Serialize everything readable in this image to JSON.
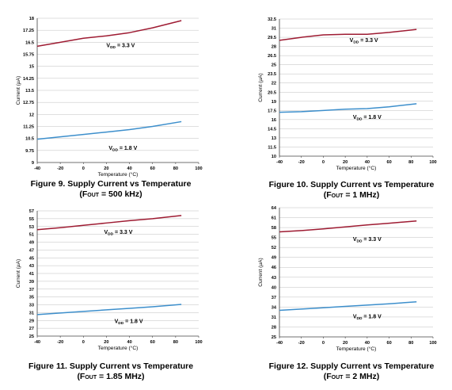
{
  "colors": {
    "vdd_3v3": "#9e1b32",
    "vdd_1v8": "#3d8fcc",
    "grid": "#bfbfbf",
    "axis": "#404040"
  },
  "captions": [
    {
      "title": "Figure 9. Supply Current vs Temperature",
      "fout_prefix": "(F",
      "fout_sub": "OUT",
      "fout_suffix": " = 500 kHz)"
    },
    {
      "title": "Figure 10. Supply Current vs Temperature",
      "fout_prefix": "(F",
      "fout_sub": "OUT",
      "fout_suffix": " = 1 MHz)"
    },
    {
      "title": "Figure 11. Supply Current vs Temperature",
      "fout_prefix": "(F",
      "fout_sub": "OUT",
      "fout_suffix": " = 1.85 MHz)"
    },
    {
      "title": "Figure 12. Supply Current vs Temperature",
      "fout_prefix": "(F",
      "fout_sub": "OUT",
      "fout_suffix": " = 2 MHz)"
    }
  ],
  "chart_data": [
    {
      "type": "line",
      "title": "Figure 9. Supply Current vs Temperature (FOUT = 500 kHz)",
      "xlabel": "Temperature (°C)",
      "ylabel": "Current (µA)",
      "xlim": [
        -40,
        100
      ],
      "ylim": [
        9,
        18
      ],
      "xticks": [
        "-40",
        "-20",
        "0",
        "20",
        "40",
        "60",
        "80",
        "100"
      ],
      "yticks": [
        "9",
        "9.75",
        "10.5",
        "11.25",
        "12",
        "12.75",
        "13.5",
        "14.25",
        "15",
        "15.75",
        "16.5",
        "17.25",
        "18"
      ],
      "grid": "horizontal",
      "series": [
        {
          "name": "VDD = 3.3 V",
          "label_main": "V",
          "label_sub": "DD",
          "label_rest": " = 3.3 V",
          "label_at": [
            20,
            16.2
          ],
          "x": [
            -40,
            -20,
            0,
            20,
            40,
            60,
            85
          ],
          "y": [
            16.25,
            16.5,
            16.75,
            16.9,
            17.1,
            17.4,
            17.85
          ]
        },
        {
          "name": "VDD = 1.8 V",
          "label_main": "V",
          "label_sub": "DD",
          "label_rest": " = 1.8 V",
          "label_at": [
            22,
            9.8
          ],
          "x": [
            -40,
            -20,
            0,
            20,
            40,
            60,
            85
          ],
          "y": [
            10.45,
            10.6,
            10.75,
            10.9,
            11.05,
            11.25,
            11.55
          ]
        }
      ]
    },
    {
      "type": "line",
      "title": "Figure 10. Supply Current vs Temperature (FOUT = 1 MHz)",
      "xlabel": "Temperature (°C)",
      "ylabel": "Current (µA)",
      "xlim": [
        -40,
        100
      ],
      "ylim": [
        10,
        32.5
      ],
      "xticks": [
        "-40",
        "-20",
        "0",
        "20",
        "40",
        "60",
        "80",
        "100"
      ],
      "yticks": [
        "10",
        "11.5",
        "13",
        "14.5",
        "16",
        "17.5",
        "19",
        "20.5",
        "22",
        "23.5",
        "25",
        "26.5",
        "28",
        "29.5",
        "31",
        "32.5"
      ],
      "grid": "horizontal",
      "series": [
        {
          "name": "VDD = 3.3 V",
          "label_main": "V",
          "label_sub": "DD",
          "label_rest": " = 3.3 V",
          "label_at": [
            24,
            28.7
          ],
          "x": [
            -40,
            -20,
            0,
            20,
            40,
            60,
            85
          ],
          "y": [
            29.0,
            29.5,
            29.9,
            30.0,
            30.0,
            30.3,
            30.8
          ]
        },
        {
          "name": "VDD = 1.8 V",
          "label_main": "V",
          "label_sub": "DD",
          "label_rest": " = 1.8 V",
          "label_at": [
            27,
            16.1
          ],
          "x": [
            -40,
            -20,
            0,
            20,
            40,
            60,
            85
          ],
          "y": [
            17.2,
            17.3,
            17.5,
            17.7,
            17.8,
            18.1,
            18.6
          ]
        }
      ]
    },
    {
      "type": "line",
      "title": "Figure 11. Supply Current vs Temperature (FOUT = 1.85 MHz)",
      "xlabel": "Temperature (°C)",
      "ylabel": "Current (µA)",
      "xlim": [
        -40,
        100
      ],
      "ylim": [
        25,
        57
      ],
      "xticks": [
        "-40",
        "-20",
        "0",
        "20",
        "40",
        "60",
        "80",
        "100"
      ],
      "yticks": [
        "25",
        "27",
        "29",
        "31",
        "33",
        "35",
        "37",
        "39",
        "41",
        "43",
        "45",
        "47",
        "49",
        "51",
        "53",
        "55",
        "57"
      ],
      "grid": "horizontal",
      "series": [
        {
          "name": "VDD = 3.3 V",
          "label_main": "V",
          "label_sub": "DD",
          "label_rest": " = 3.3 V",
          "label_at": [
            18,
            51.1
          ],
          "x": [
            -40,
            -20,
            0,
            20,
            40,
            60,
            85
          ],
          "y": [
            52.2,
            52.7,
            53.3,
            53.9,
            54.5,
            55.0,
            55.8
          ]
        },
        {
          "name": "VDD = 1.8 V",
          "label_main": "V",
          "label_sub": "DD",
          "label_rest": " = 1.8 V",
          "label_at": [
            27,
            28.3
          ],
          "x": [
            -40,
            -20,
            0,
            20,
            40,
            60,
            85
          ],
          "y": [
            30.5,
            30.9,
            31.3,
            31.7,
            32.1,
            32.5,
            33.1
          ]
        }
      ]
    },
    {
      "type": "line",
      "title": "Figure 12. Supply Current vs Temperature (FOUT = 2 MHz)",
      "xlabel": "Temperature (°C)",
      "ylabel": "Current (µA)",
      "xlim": [
        -40,
        100
      ],
      "ylim": [
        25,
        64
      ],
      "xticks": [
        "-40",
        "-20",
        "0",
        "20",
        "40",
        "60",
        "80",
        "100"
      ],
      "yticks": [
        "25",
        "28",
        "31",
        "34",
        "37",
        "40",
        "43",
        "46",
        "49",
        "52",
        "55",
        "58",
        "61",
        "64"
      ],
      "grid": "horizontal",
      "series": [
        {
          "name": "VDD = 3.3 V",
          "label_main": "V",
          "label_sub": "DD",
          "label_rest": " = 3.3 V",
          "label_at": [
            27,
            54.0
          ],
          "x": [
            -40,
            -20,
            0,
            20,
            40,
            60,
            85
          ],
          "y": [
            56.7,
            57.1,
            57.6,
            58.2,
            58.8,
            59.3,
            60.0
          ]
        },
        {
          "name": "VDD = 1.8 V",
          "label_main": "V",
          "label_sub": "DD",
          "label_rest": " = 1.8 V",
          "label_at": [
            27,
            30.6
          ],
          "x": [
            -40,
            -20,
            0,
            20,
            40,
            60,
            85
          ],
          "y": [
            33.0,
            33.4,
            33.8,
            34.2,
            34.6,
            35.0,
            35.6
          ]
        }
      ]
    }
  ]
}
